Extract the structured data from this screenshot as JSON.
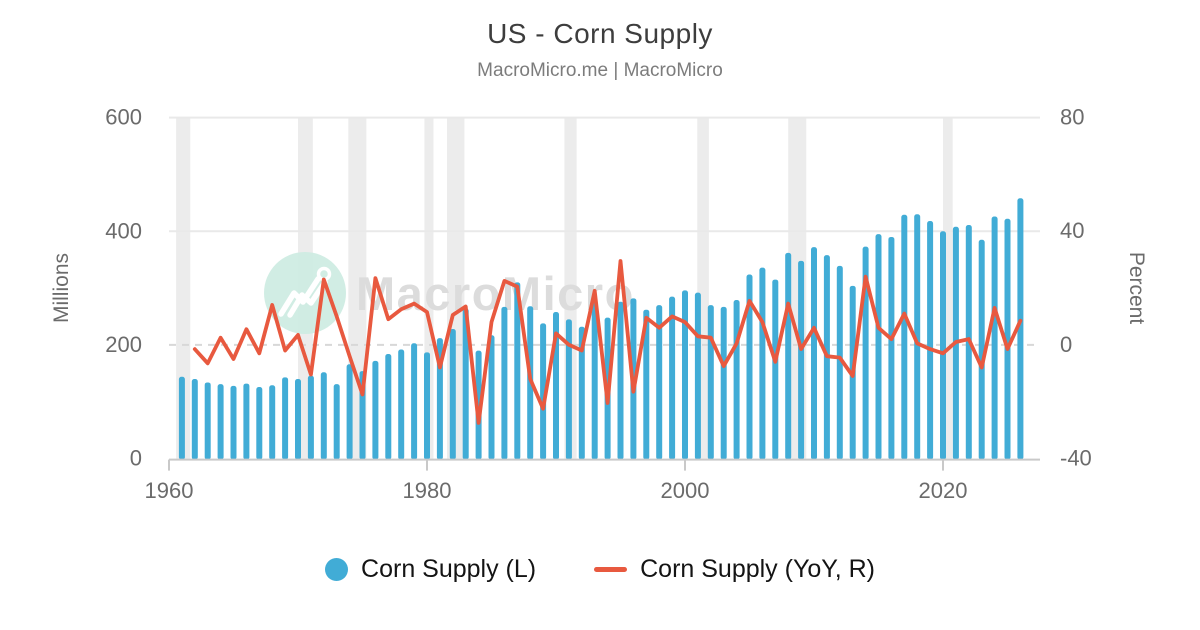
{
  "chart_data": {
    "type": "combo-bar-line",
    "title": "US - Corn Supply",
    "subtitle": "MacroMicro.me | MacroMicro",
    "x_axis": {
      "ticks": [
        1960,
        1980,
        2000,
        2020
      ],
      "range": [
        1959.6,
        2027.4
      ]
    },
    "left_axis": {
      "label": "Millions",
      "ticks": [
        0,
        200,
        400,
        600
      ],
      "range": [
        0,
        600
      ]
    },
    "right_axis": {
      "label": "Percent",
      "ticks": [
        -40,
        0,
        40,
        80
      ],
      "range": [
        -40,
        80
      ]
    },
    "grid": "horizontal, zero-percent line dashed",
    "legend_position": "bottom",
    "series": [
      {
        "name": "Corn Supply (L)",
        "type": "bar",
        "axis": "left",
        "unit": "Millions",
        "color": "#41acd6",
        "start_year": 1961,
        "values": [
          144,
          140,
          134,
          131,
          128,
          132,
          126,
          129,
          143,
          140,
          146,
          152,
          131,
          166,
          154,
          172,
          184,
          192,
          203,
          187,
          212,
          228,
          264,
          190,
          217,
          267,
          310,
          268,
          238,
          258,
          245,
          232,
          276,
          248,
          276,
          282,
          262,
          270,
          285,
          296,
          292,
          270,
          267,
          279,
          324,
          336,
          315,
          362,
          348,
          372,
          358,
          339,
          304,
          373,
          395,
          390,
          429,
          430,
          418,
          400,
          408,
          411,
          385,
          426,
          422,
          458
        ]
      },
      {
        "name": "Corn Supply (YoY, R)",
        "type": "line",
        "axis": "right",
        "unit": "Percent",
        "color": "#e8593f",
        "start_year": 1962,
        "values": [
          -1.5,
          -6.5,
          2.5,
          -5,
          5.5,
          -3,
          14,
          -2,
          3.5,
          -10.5,
          23,
          10,
          -4,
          -17.5,
          23.5,
          9,
          12.5,
          14.5,
          11.5,
          -8,
          10.5,
          13.5,
          -27.5,
          8,
          22.5,
          20.5,
          -12,
          -22.5,
          4,
          0,
          -2,
          19,
          -20.5,
          29.5,
          -16.5,
          9.5,
          6,
          10,
          8,
          3,
          2.5,
          -7.5,
          0.5,
          15.5,
          8,
          -6,
          14.5,
          -1.5,
          6,
          -4,
          -4.5,
          -11,
          24,
          6,
          2,
          11,
          0.5,
          -1.5,
          -3,
          1,
          2,
          -8,
          13,
          -1.5,
          8.5
        ]
      }
    ],
    "recession_bands": [
      [
        1960.55,
        1961.65
      ],
      [
        1970.0,
        1971.15
      ],
      [
        1973.9,
        1975.3
      ],
      [
        1979.8,
        1980.5
      ],
      [
        1981.55,
        1982.9
      ],
      [
        1990.65,
        1991.6
      ],
      [
        2000.95,
        2001.85
      ],
      [
        2008.0,
        2009.4
      ],
      [
        2020.0,
        2020.75
      ]
    ]
  },
  "legend": [
    {
      "label": "Corn Supply (L)",
      "marker": "circle",
      "color": "#41acd6"
    },
    {
      "label": "Corn Supply (YoY, R)",
      "marker": "line",
      "color": "#e8593f"
    }
  ],
  "watermark": {
    "text": "MacroMicro",
    "circle_color": "#cdebe2",
    "text_color": "#dcdcdc"
  },
  "colors": {
    "bar": "#41acd6",
    "line": "#e8593f",
    "recession_band": "#ececec",
    "grid_solid": "#e9e9e9",
    "grid_dashed": "#d8d8d8",
    "axis_line": "#c9c9c9",
    "tick_text": "#6b6b6b",
    "title_text": "#3d3d3d",
    "subtitle_text": "#7c7c7c",
    "background": "#ffffff"
  }
}
